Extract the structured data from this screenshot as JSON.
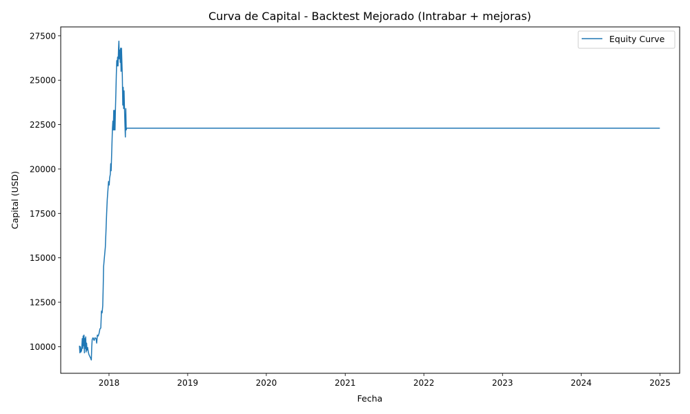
{
  "chart_data": {
    "type": "line",
    "title": "Curva de Capital - Backtest Mejorado (Intrabar + mejoras)",
    "xlabel": "Fecha",
    "ylabel": "Capital (USD)",
    "xlim": [
      "2017-05-22",
      "2025-04-02"
    ],
    "ylim": [
      8500,
      28000
    ],
    "x_ticks": [
      "2018",
      "2019",
      "2020",
      "2021",
      "2022",
      "2023",
      "2024",
      "2025"
    ],
    "y_ticks": [
      10000,
      12500,
      15000,
      17500,
      20000,
      22500,
      25000,
      27500
    ],
    "grid": false,
    "legend_position": "upper right",
    "series": [
      {
        "name": "Equity Curve",
        "color": "#1f77b4",
        "points": [
          [
            "2017-08-17",
            10050
          ],
          [
            "2017-08-19",
            9650
          ],
          [
            "2017-08-21",
            10000
          ],
          [
            "2017-08-24",
            9700
          ],
          [
            "2017-08-27",
            9800
          ],
          [
            "2017-08-30",
            10450
          ],
          [
            "2017-09-01",
            9900
          ],
          [
            "2017-09-03",
            10600
          ],
          [
            "2017-09-05",
            10050
          ],
          [
            "2017-09-07",
            10650
          ],
          [
            "2017-09-09",
            9650
          ],
          [
            "2017-09-11",
            10450
          ],
          [
            "2017-09-13",
            9900
          ],
          [
            "2017-09-15",
            10550
          ],
          [
            "2017-09-17",
            9700
          ],
          [
            "2017-09-19",
            10200
          ],
          [
            "2017-09-21",
            9800
          ],
          [
            "2017-09-24",
            9950
          ],
          [
            "2017-09-27",
            9700
          ],
          [
            "2017-09-30",
            9550
          ],
          [
            "2017-10-04",
            9450
          ],
          [
            "2017-10-08",
            9350
          ],
          [
            "2017-10-11",
            9250
          ],
          [
            "2017-10-13",
            10000
          ],
          [
            "2017-10-15",
            10400
          ],
          [
            "2017-10-19",
            10500
          ],
          [
            "2017-10-24",
            10350
          ],
          [
            "2017-10-28",
            10500
          ],
          [
            "2017-11-02",
            10450
          ],
          [
            "2017-11-05",
            10200
          ],
          [
            "2017-11-08",
            10650
          ],
          [
            "2017-11-12",
            10600
          ],
          [
            "2017-11-16",
            10750
          ],
          [
            "2017-11-20",
            11000
          ],
          [
            "2017-11-24",
            11050
          ],
          [
            "2017-11-27",
            12000
          ],
          [
            "2017-11-30",
            11900
          ],
          [
            "2017-12-03",
            12300
          ],
          [
            "2017-12-05",
            13300
          ],
          [
            "2017-12-07",
            14500
          ],
          [
            "2017-12-09",
            14800
          ],
          [
            "2017-12-12",
            15200
          ],
          [
            "2017-12-15",
            15600
          ],
          [
            "2017-12-18",
            16500
          ],
          [
            "2017-12-21",
            17500
          ],
          [
            "2017-12-24",
            18300
          ],
          [
            "2017-12-27",
            18800
          ],
          [
            "2017-12-30",
            19300
          ],
          [
            "2018-01-02",
            19100
          ],
          [
            "2018-01-04",
            19500
          ],
          [
            "2018-01-07",
            19700
          ],
          [
            "2018-01-09",
            20300
          ],
          [
            "2018-01-11",
            19900
          ],
          [
            "2018-01-13",
            20700
          ],
          [
            "2018-01-15",
            21500
          ],
          [
            "2018-01-17",
            22300
          ],
          [
            "2018-01-19",
            22700
          ],
          [
            "2018-01-21",
            22200
          ],
          [
            "2018-01-23",
            23300
          ],
          [
            "2018-01-25",
            22200
          ],
          [
            "2018-01-27",
            23300
          ],
          [
            "2018-01-29",
            22200
          ],
          [
            "2018-01-31",
            23400
          ],
          [
            "2018-02-02",
            24300
          ],
          [
            "2018-02-04",
            25300
          ],
          [
            "2018-02-06",
            26100
          ],
          [
            "2018-02-08",
            25800
          ],
          [
            "2018-02-10",
            26300
          ],
          [
            "2018-02-12",
            25800
          ],
          [
            "2018-02-14",
            26700
          ],
          [
            "2018-02-16",
            27200
          ],
          [
            "2018-02-18",
            26200
          ],
          [
            "2018-02-20",
            26700
          ],
          [
            "2018-02-22",
            26000
          ],
          [
            "2018-02-24",
            26800
          ],
          [
            "2018-02-26",
            25500
          ],
          [
            "2018-02-28",
            26800
          ],
          [
            "2018-03-02",
            26000
          ],
          [
            "2018-03-04",
            25200
          ],
          [
            "2018-03-06",
            23600
          ],
          [
            "2018-03-08",
            24600
          ],
          [
            "2018-03-10",
            23400
          ],
          [
            "2018-03-12",
            24400
          ],
          [
            "2018-03-14",
            23400
          ],
          [
            "2018-03-16",
            22500
          ],
          [
            "2018-03-18",
            21800
          ],
          [
            "2018-03-20",
            23400
          ],
          [
            "2018-03-22",
            22200
          ],
          [
            "2018-03-24",
            22300
          ],
          [
            "2018-03-26",
            22300
          ],
          [
            "2024-12-31",
            22300
          ]
        ]
      }
    ]
  }
}
